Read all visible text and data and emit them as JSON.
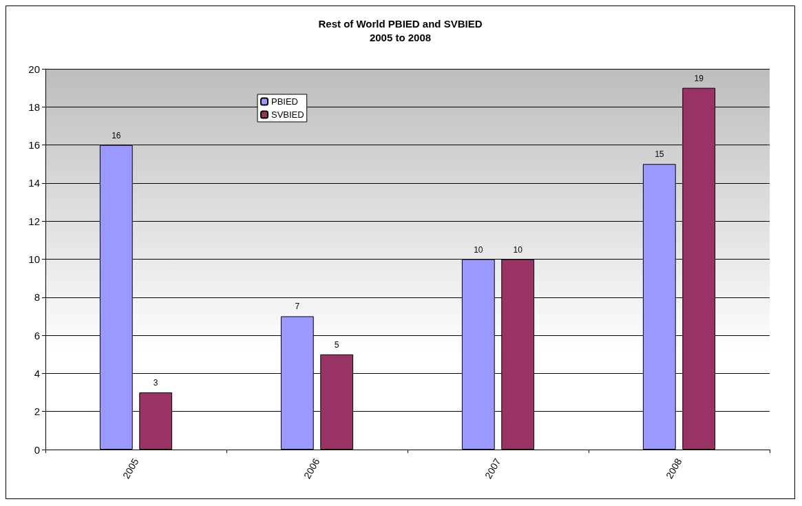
{
  "chart_data": {
    "type": "bar",
    "title": "Rest of World PBIED and SVBIED\n2005 to 2008",
    "categories": [
      "2005",
      "2006",
      "2007",
      "2008"
    ],
    "series": [
      {
        "name": "PBIED",
        "color": "#9999ff",
        "values": [
          16,
          7,
          10,
          15
        ]
      },
      {
        "name": "SVBIED",
        "color": "#993366",
        "values": [
          3,
          5,
          10,
          19
        ]
      }
    ],
    "ylim": [
      0,
      20
    ],
    "yticks": [
      0,
      2,
      4,
      6,
      8,
      10,
      12,
      14,
      16,
      18,
      20
    ],
    "grid": "y",
    "legend": "top left",
    "data_labels": true
  }
}
